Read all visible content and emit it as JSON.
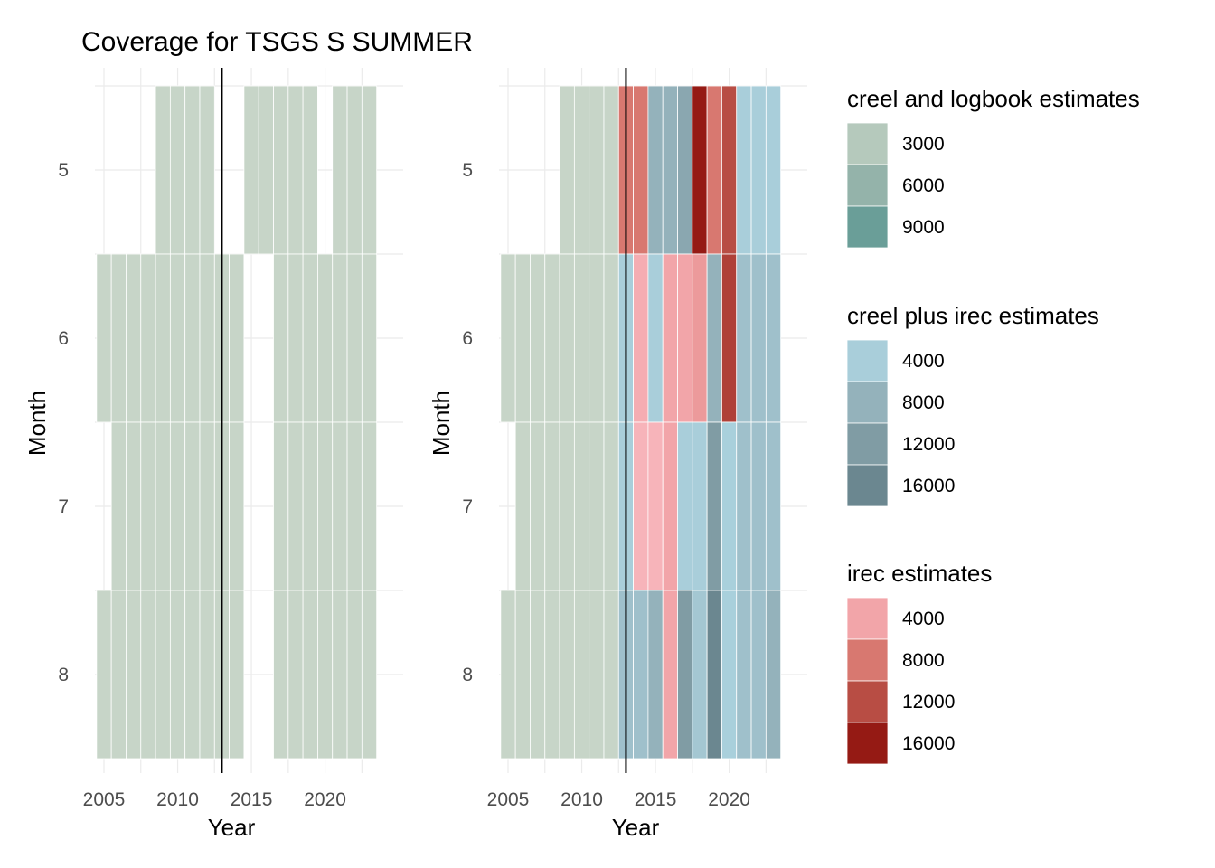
{
  "chart_data": {
    "type": "heatmap",
    "title": "Coverage for TSGS S SUMMER",
    "xlabel": "Year",
    "ylabel": "Month",
    "x_ticks": [
      2005,
      2010,
      2015,
      2020
    ],
    "y_ticks": [
      5,
      6,
      7,
      8
    ],
    "xlim": [
      2004.5,
      2024
    ],
    "ylim": [
      4.5,
      8.5
    ],
    "reference_line_x": 2013,
    "colors": {
      "creel": [
        "#b5c9bc",
        "#94b3aa",
        "#6a9e98"
      ],
      "creel_irec": [
        "#a9ceda",
        "#94b2bb",
        "#809ca4",
        "#6b8790"
      ],
      "irec": [
        "#f2a5a9",
        "#d87870",
        "#b84d44",
        "#951a14"
      ],
      "coverage": "#d8e1d3"
    },
    "legends": [
      {
        "title": "creel and logbook estimates",
        "scale": "creel",
        "labels": [
          "3000",
          "6000",
          "9000"
        ]
      },
      {
        "title": "creel plus irec estimates",
        "scale": "creel_irec",
        "labels": [
          "4000",
          "8000",
          "12000",
          "16000"
        ]
      },
      {
        "title": "irec estimates",
        "scale": "irec",
        "labels": [
          "4000",
          "8000",
          "12000",
          "16000"
        ]
      }
    ],
    "panels": [
      {
        "name": "left",
        "cells": [
          {
            "month": 5,
            "years": [
              2009,
              2010,
              2011,
              2012,
              2015,
              2016,
              2017,
              2018,
              2019,
              2021,
              2022,
              2023
            ],
            "source": "creel",
            "value": 1500
          },
          {
            "month": 6,
            "years": [
              2005,
              2006,
              2007,
              2008,
              2009,
              2010,
              2011,
              2012,
              2013,
              2014,
              2017,
              2018,
              2019,
              2020,
              2021,
              2022,
              2023
            ],
            "source": "creel",
            "value": 1500
          },
          {
            "month": 7,
            "years": [
              2006,
              2007,
              2008,
              2009,
              2010,
              2011,
              2012,
              2013,
              2014,
              2017,
              2018,
              2019,
              2020,
              2021,
              2022,
              2023
            ],
            "source": "creel",
            "value": 1500
          },
          {
            "month": 8,
            "years": [
              2005,
              2006,
              2007,
              2008,
              2009,
              2010,
              2011,
              2012,
              2013,
              2014,
              2017,
              2018,
              2019,
              2020,
              2021,
              2022,
              2023
            ],
            "source": "creel",
            "value": 1500
          }
        ]
      },
      {
        "name": "right",
        "cells": [
          {
            "month": 5,
            "years": [
              2009,
              2010,
              2011,
              2012
            ],
            "source": "creel",
            "value": 1500
          },
          {
            "month": 5,
            "years": [
              2013,
              2014
            ],
            "source": "irec",
            "value": 8000
          },
          {
            "month": 5,
            "years": [
              2015,
              2016
            ],
            "source": "creel_irec",
            "value": 8000
          },
          {
            "month": 5,
            "years": [
              2017
            ],
            "source": "creel_irec",
            "value": 10000
          },
          {
            "month": 5,
            "years": [
              2018
            ],
            "source": "irec",
            "value": 16000
          },
          {
            "month": 5,
            "years": [
              2019
            ],
            "source": "irec",
            "value": 8000
          },
          {
            "month": 5,
            "years": [
              2020
            ],
            "source": "irec",
            "value": 12000
          },
          {
            "month": 5,
            "years": [
              2021,
              2022,
              2023
            ],
            "source": "creel_irec",
            "value": 4000
          },
          {
            "month": 6,
            "years": [
              2005,
              2006,
              2007,
              2008,
              2009,
              2010,
              2011,
              2012
            ],
            "source": "creel",
            "value": 1500
          },
          {
            "month": 6,
            "years": [
              2013
            ],
            "source": "creel_irec",
            "value": 4000
          },
          {
            "month": 6,
            "years": [
              2014
            ],
            "source": "irec",
            "value": 3000
          },
          {
            "month": 6,
            "years": [
              2015
            ],
            "source": "creel_irec",
            "value": 4000
          },
          {
            "month": 6,
            "years": [
              2016,
              2017
            ],
            "source": "irec",
            "value": 4000
          },
          {
            "month": 6,
            "years": [
              2018
            ],
            "source": "irec",
            "value": 5000
          },
          {
            "month": 6,
            "years": [
              2019
            ],
            "source": "creel_irec",
            "value": 8000
          },
          {
            "month": 6,
            "years": [
              2020
            ],
            "source": "irec",
            "value": 13000
          },
          {
            "month": 6,
            "years": [
              2021,
              2022,
              2023
            ],
            "source": "creel_irec",
            "value": 6000
          },
          {
            "month": 7,
            "years": [
              2006,
              2007,
              2008,
              2009,
              2010,
              2011,
              2012
            ],
            "source": "creel",
            "value": 1500
          },
          {
            "month": 7,
            "years": [
              2013
            ],
            "source": "creel_irec",
            "value": 4000
          },
          {
            "month": 7,
            "years": [
              2014,
              2015
            ],
            "source": "irec",
            "value": 2000
          },
          {
            "month": 7,
            "years": [
              2016
            ],
            "source": "irec",
            "value": 4000
          },
          {
            "month": 7,
            "years": [
              2017,
              2018
            ],
            "source": "creel_irec",
            "value": 4000
          },
          {
            "month": 7,
            "years": [
              2019
            ],
            "source": "creel_irec",
            "value": 12000
          },
          {
            "month": 7,
            "years": [
              2020
            ],
            "source": "creel_irec",
            "value": 3000
          },
          {
            "month": 7,
            "years": [
              2021,
              2022,
              2023
            ],
            "source": "creel_irec",
            "value": 6000
          },
          {
            "month": 8,
            "years": [
              2005,
              2006,
              2007,
              2008,
              2009,
              2010,
              2011,
              2012
            ],
            "source": "creel",
            "value": 1500
          },
          {
            "month": 8,
            "years": [
              2013,
              2014
            ],
            "source": "creel_irec",
            "value": 6000
          },
          {
            "month": 8,
            "years": [
              2015
            ],
            "source": "creel_irec",
            "value": 8000
          },
          {
            "month": 8,
            "years": [
              2016
            ],
            "source": "irec",
            "value": 4000
          },
          {
            "month": 8,
            "years": [
              2017
            ],
            "source": "creel_irec",
            "value": 12000
          },
          {
            "month": 8,
            "years": [
              2018
            ],
            "source": "creel_irec",
            "value": 5000
          },
          {
            "month": 8,
            "years": [
              2019
            ],
            "source": "creel_irec",
            "value": 16000
          },
          {
            "month": 8,
            "years": [
              2020
            ],
            "source": "creel_irec",
            "value": 3000
          },
          {
            "month": 8,
            "years": [
              2021,
              2022
            ],
            "source": "creel_irec",
            "value": 6000
          },
          {
            "month": 8,
            "years": [
              2023
            ],
            "source": "creel_irec",
            "value": 8000
          }
        ]
      }
    ]
  }
}
